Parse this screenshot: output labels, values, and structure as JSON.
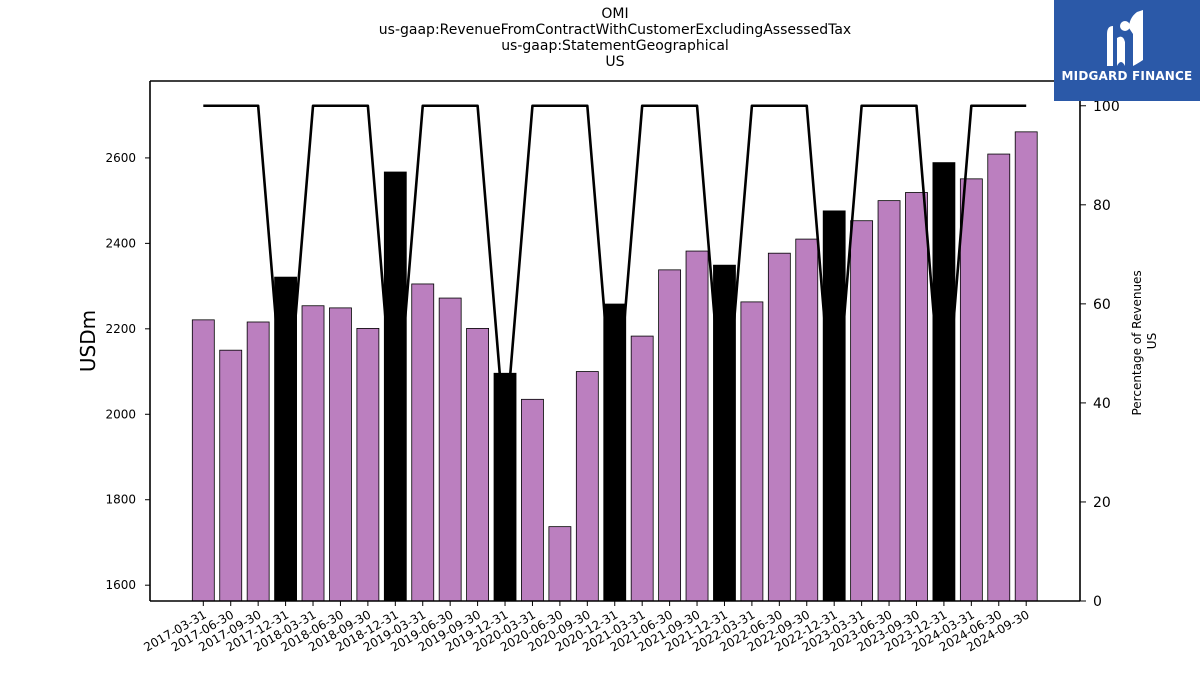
{
  "header": {
    "title_lines": [
      "OMI",
      "us-gaap:RevenueFromContractWithCustomerExcludingAssessedTax",
      "us-gaap:StatementGeographical",
      "US"
    ]
  },
  "logo": {
    "text": "MIDGARD FINANCE",
    "icon": "midgard-finance-logo-icon",
    "background": "#2b59a8"
  },
  "chart_data": {
    "type": "bar",
    "ylabel": "USDm",
    "y2label_lines": [
      "Percentage of Revenues",
      "US"
    ],
    "ylim": [
      1563,
      2780
    ],
    "y2lim": [
      0,
      105
    ],
    "yticks": [
      1600,
      1800,
      2000,
      2200,
      2400,
      2600
    ],
    "y2ticks": [
      0,
      20,
      40,
      60,
      80,
      100
    ],
    "colors": {
      "quarter": "#bb7fbf",
      "year_end": "#000000",
      "line": "#000000"
    },
    "grid": false,
    "categories": [
      "2017-03-31",
      "2017-06-30",
      "2017-09-30",
      "2017-12-31",
      "2018-03-31",
      "2018-06-30",
      "2018-09-30",
      "2018-12-31",
      "2019-03-31",
      "2019-06-30",
      "2019-09-30",
      "2019-12-31",
      "2020-03-31",
      "2020-06-30",
      "2020-09-30",
      "2020-12-31",
      "2021-03-31",
      "2021-06-30",
      "2021-09-30",
      "2021-12-31",
      "2022-03-31",
      "2022-06-30",
      "2022-09-30",
      "2022-12-31",
      "2023-03-31",
      "2023-06-30",
      "2023-09-30",
      "2023-12-31",
      "2024-03-31",
      "2024-06-30",
      "2024-09-30"
    ],
    "series": [
      {
        "values": [
          2221,
          2150,
          2216,
          2321,
          2254,
          2249,
          2201,
          2567,
          2305,
          2272,
          2201,
          2096,
          2035,
          1737,
          2100,
          2258,
          2183,
          2338,
          2382,
          2349,
          2263,
          2377,
          2410,
          2476,
          2453,
          2500,
          2519,
          2589,
          2551,
          2609,
          2661
        ]
      },
      {
        "values": [
          100,
          100,
          100,
          33,
          100,
          100,
          100,
          33,
          100,
          100,
          100,
          33,
          100,
          100,
          100,
          33,
          100,
          100,
          100,
          33,
          100,
          100,
          100,
          33,
          100,
          100,
          100,
          33,
          100,
          100,
          100
        ]
      }
    ],
    "year_end_flags": [
      false,
      false,
      false,
      true,
      false,
      false,
      false,
      true,
      false,
      false,
      false,
      true,
      false,
      false,
      false,
      true,
      false,
      false,
      false,
      true,
      false,
      false,
      false,
      true,
      false,
      false,
      false,
      true,
      false,
      false,
      false
    ]
  }
}
